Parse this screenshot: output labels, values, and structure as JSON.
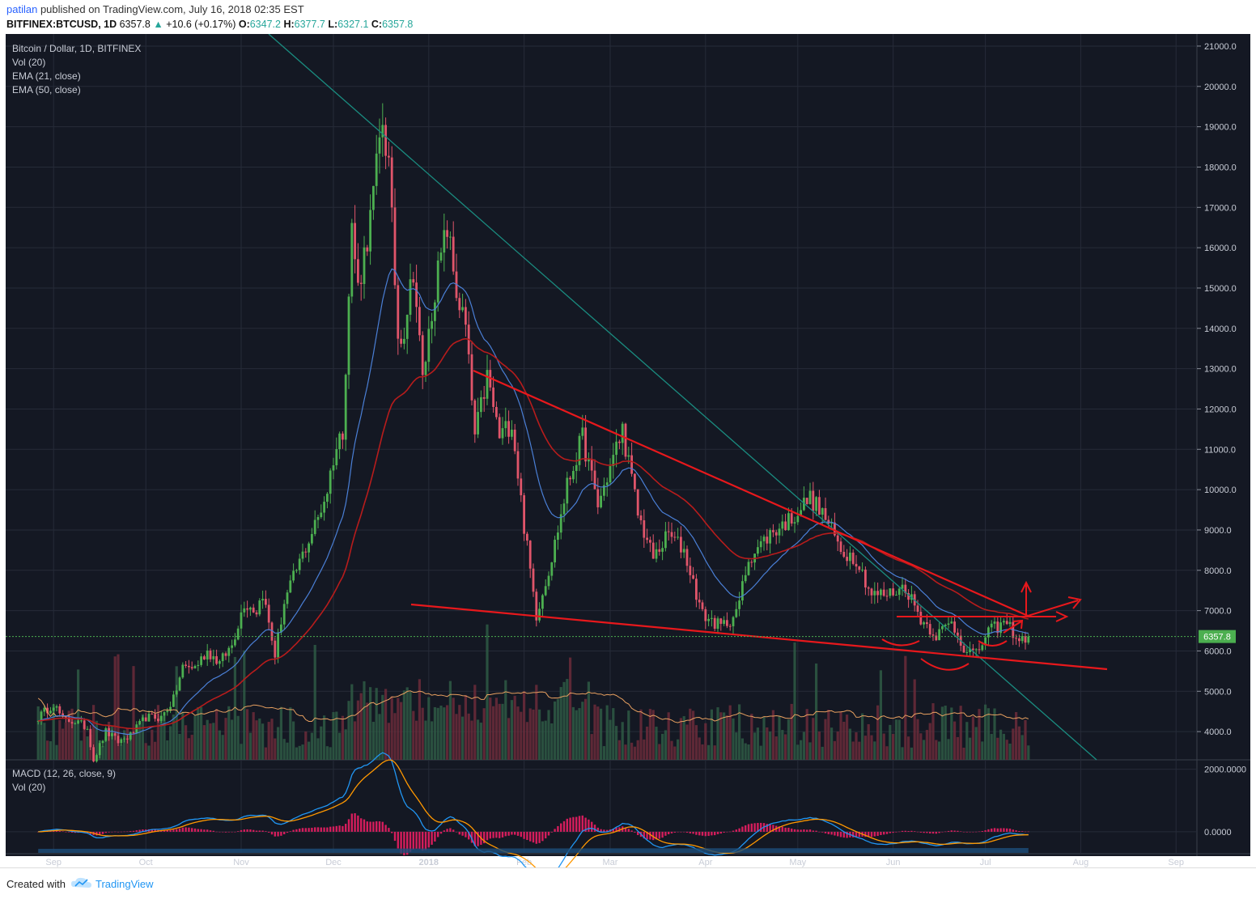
{
  "header": {
    "user": "patilan",
    "published": "published on TradingView.com, July 16, 2018 02:35 EST",
    "symbol": "BITFINEX:BTCUSD, 1D",
    "last": "6357.8",
    "change": "+10.6 (+0.17%)",
    "ohlc": [
      {
        "k": "O:",
        "v": "6347.2"
      },
      {
        "k": "H:",
        "v": "6377.7"
      },
      {
        "k": "L:",
        "v": "6327.1"
      },
      {
        "k": "C:",
        "v": "6357.8"
      }
    ]
  },
  "legend": [
    "Bitcoin / Dollar, 1D, BITFINEX",
    "Vol (20)",
    "EMA (21, close)",
    "EMA (50, close)"
  ],
  "macd_legend": [
    "MACD (12, 26, close, 9)",
    "Vol (20)"
  ],
  "footer": {
    "created": "Created with",
    "brand": "TradingView"
  },
  "colors": {
    "background": "#141823",
    "grid": "#262b38",
    "up": "#4caf50",
    "down": "#e0556a",
    "ema21": "#4a7fd6",
    "ema50": "#b71c1c",
    "drawing": "#e8181c",
    "trend": "#1a8c80",
    "macd": "#2196f3",
    "signal": "#ff9800",
    "hist": "#e91e63"
  },
  "chart_data": {
    "type": "candlestick",
    "ylim": [
      3300,
      21300
    ],
    "y_ticks": [
      "21000.0",
      "20000.0",
      "19000.0",
      "18000.0",
      "17000.0",
      "16000.0",
      "15000.0",
      "14000.0",
      "13000.0",
      "12000.0",
      "11000.0",
      "10000.0",
      "9000.0",
      "8000.0",
      "7000.0",
      "6000.0",
      "5000.0",
      "4000.0"
    ],
    "x_ticks": [
      {
        "label": "Sep",
        "date": "2017-09-01"
      },
      {
        "label": "Oct",
        "date": "2017-10-01"
      },
      {
        "label": "Nov",
        "date": "2017-11-01"
      },
      {
        "label": "Dec",
        "date": "2017-12-01"
      },
      {
        "label": "2018",
        "date": "2018-01-01"
      },
      {
        "label": "Feb",
        "date": "2018-02-01"
      },
      {
        "label": "Mar",
        "date": "2018-03-01"
      },
      {
        "label": "Apr",
        "date": "2018-04-01"
      },
      {
        "label": "May",
        "date": "2018-05-01"
      },
      {
        "label": "Jun",
        "date": "2018-06-01"
      },
      {
        "label": "Jul",
        "date": "2018-07-01"
      },
      {
        "label": "Aug",
        "date": "2018-08-01"
      },
      {
        "label": "Sep",
        "date": "2018-09-01"
      }
    ],
    "price_series": [
      [
        "2017-08-27",
        4350
      ],
      [
        "2017-09-01",
        4700
      ],
      [
        "2017-09-04",
        4300
      ],
      [
        "2017-09-08",
        4250
      ],
      [
        "2017-09-12",
        4100
      ],
      [
        "2017-09-14",
        3300
      ],
      [
        "2017-09-18",
        4000
      ],
      [
        "2017-09-22",
        3750
      ],
      [
        "2017-09-26",
        3900
      ],
      [
        "2017-10-01",
        4350
      ],
      [
        "2017-10-06",
        4350
      ],
      [
        "2017-10-10",
        4800
      ],
      [
        "2017-10-13",
        5600
      ],
      [
        "2017-10-17",
        5600
      ],
      [
        "2017-10-21",
        6000
      ],
      [
        "2017-10-25",
        5700
      ],
      [
        "2017-10-29",
        6150
      ],
      [
        "2017-11-02",
        7200
      ],
      [
        "2017-11-06",
        7000
      ],
      [
        "2017-11-08",
        7450
      ],
      [
        "2017-11-12",
        5900
      ],
      [
        "2017-11-15",
        7200
      ],
      [
        "2017-11-20",
        8200
      ],
      [
        "2017-11-26",
        9300
      ],
      [
        "2017-11-29",
        10000
      ],
      [
        "2017-12-01",
        10800
      ],
      [
        "2017-12-04",
        11500
      ],
      [
        "2017-12-07",
        16500
      ],
      [
        "2017-12-09",
        15000
      ],
      [
        "2017-12-13",
        16700
      ],
      [
        "2017-12-17",
        19200
      ],
      [
        "2017-12-19",
        18000
      ],
      [
        "2017-12-22",
        13800
      ],
      [
        "2017-12-24",
        14000
      ],
      [
        "2017-12-27",
        15500
      ],
      [
        "2017-12-30",
        12700
      ],
      [
        "2018-01-03",
        15000
      ],
      [
        "2018-01-07",
        16500
      ],
      [
        "2018-01-10",
        14900
      ],
      [
        "2018-01-13",
        14000
      ],
      [
        "2018-01-16",
        11300
      ],
      [
        "2018-01-20",
        12800
      ],
      [
        "2018-01-24",
        11300
      ],
      [
        "2018-01-28",
        11700
      ],
      [
        "2018-02-01",
        9100
      ],
      [
        "2018-02-05",
        6900
      ],
      [
        "2018-02-10",
        8300
      ],
      [
        "2018-02-15",
        10100
      ],
      [
        "2018-02-20",
        11300
      ],
      [
        "2018-02-25",
        9600
      ],
      [
        "2018-03-05",
        11500
      ],
      [
        "2018-03-10",
        9400
      ],
      [
        "2018-03-15",
        8300
      ],
      [
        "2018-03-20",
        8900
      ],
      [
        "2018-03-25",
        8500
      ],
      [
        "2018-03-31",
        6900
      ],
      [
        "2018-04-06",
        6600
      ],
      [
        "2018-04-11",
        6900
      ],
      [
        "2018-04-15",
        8300
      ],
      [
        "2018-04-22",
        8900
      ],
      [
        "2018-04-29",
        9300
      ],
      [
        "2018-05-05",
        9800
      ],
      [
        "2018-05-10",
        9300
      ],
      [
        "2018-05-15",
        8500
      ],
      [
        "2018-05-20",
        8300
      ],
      [
        "2018-05-25",
        7400
      ],
      [
        "2018-05-30",
        7400
      ],
      [
        "2018-06-05",
        7600
      ],
      [
        "2018-06-10",
        6800
      ],
      [
        "2018-06-15",
        6400
      ],
      [
        "2018-06-20",
        6700
      ],
      [
        "2018-06-24",
        6100
      ],
      [
        "2018-06-28",
        5900
      ],
      [
        "2018-07-02",
        6500
      ],
      [
        "2018-07-08",
        6700
      ],
      [
        "2018-07-12",
        6250
      ],
      [
        "2018-07-15",
        6357.8
      ]
    ],
    "last_price": 6357.8,
    "macd_ylim": [
      -700,
      2300
    ],
    "macd_ticks": [
      "2000.0000",
      "0.0000"
    ]
  }
}
